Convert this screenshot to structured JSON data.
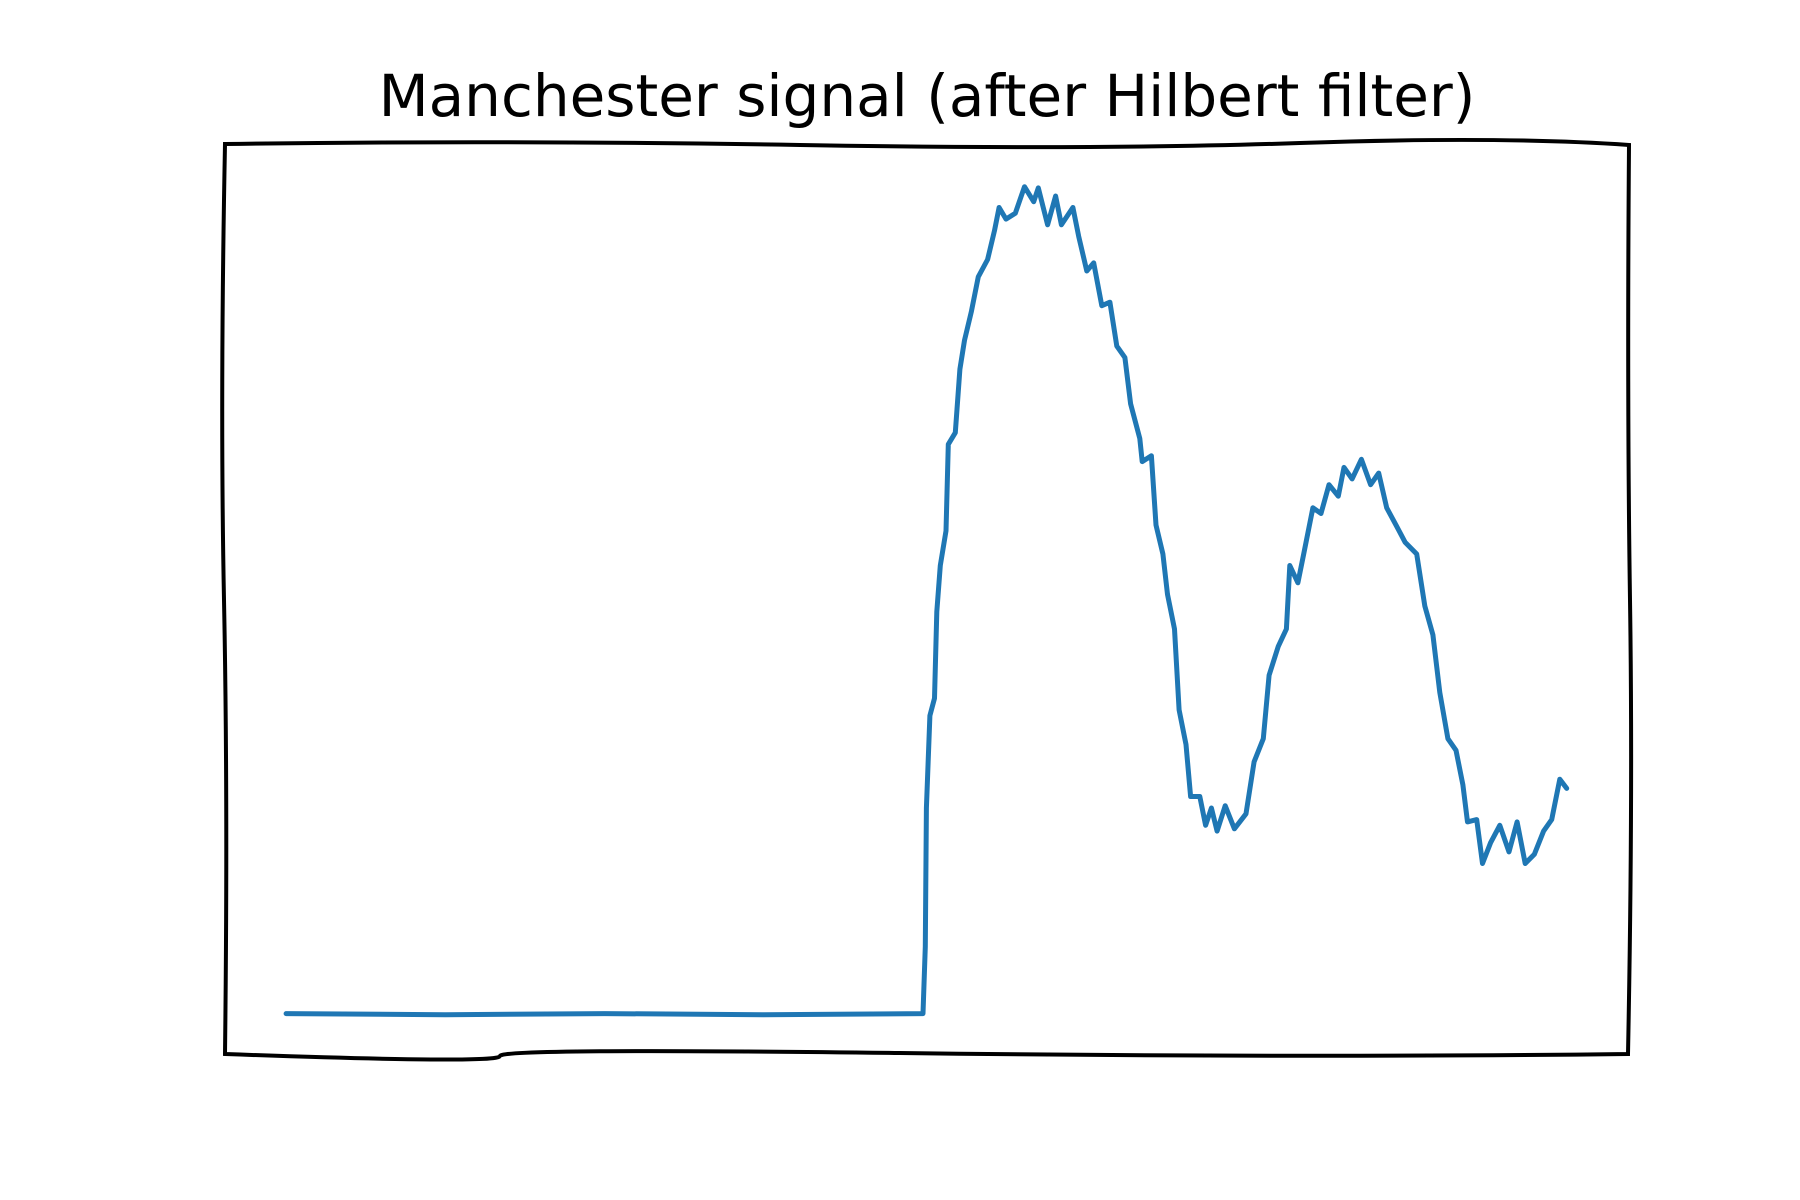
{
  "chart_data": {
    "type": "line",
    "title": "Manchester signal (after Hilbert filter)",
    "x": [
      0,
      138,
      276,
      414,
      552,
      554,
      555,
      558,
      562,
      564,
      567,
      572,
      574,
      580,
      584,
      588,
      594,
      600,
      608,
      614,
      618,
      624,
      632,
      640,
      648,
      652,
      660,
      667,
      672,
      682,
      687,
      694,
      700,
      707,
      714,
      720,
      727,
      732,
      740,
      742,
      750,
      754,
      760,
      764,
      770,
      774,
      780,
      784,
      792,
      797,
      802,
      807,
      814,
      822,
      832,
      839,
      847,
      852,
      860,
      867,
      870,
      877,
      882,
      890,
      897,
      904,
      912,
      917,
      924,
      932,
      940,
      947,
      954,
      962,
      970,
      980,
      987,
      994,
      1000,
      1007,
      1014,
      1020,
      1024,
      1032,
      1037,
      1044,
      1052,
      1060,
      1067,
      1074,
      1082,
      1090,
      1097,
      1104,
      1110
    ],
    "values": [
      35,
      34,
      35,
      34,
      35,
      93,
      213,
      293,
      308,
      383,
      423,
      453,
      528,
      538,
      593,
      618,
      643,
      673,
      688,
      713,
      733,
      723,
      728,
      751,
      738,
      750,
      718,
      743,
      718,
      733,
      708,
      678,
      685,
      648,
      651,
      613,
      603,
      563,
      533,
      513,
      518,
      458,
      433,
      398,
      368,
      298,
      268,
      223,
      223,
      198,
      213,
      193,
      215,
      195,
      208,
      253,
      273,
      328,
      353,
      368,
      423,
      408,
      433,
      473,
      468,
      493,
      483,
      508,
      498,
      515,
      493,
      503,
      473,
      458,
      443,
      433,
      388,
      363,
      313,
      273,
      263,
      233,
      201,
      203,
      165,
      183,
      198,
      175,
      201,
      165,
      173,
      193,
      203,
      238,
      230
    ],
    "color": "#1f77b4",
    "xlim": [
      -53,
      1164
    ],
    "ylim": [
      0,
      788
    ]
  }
}
